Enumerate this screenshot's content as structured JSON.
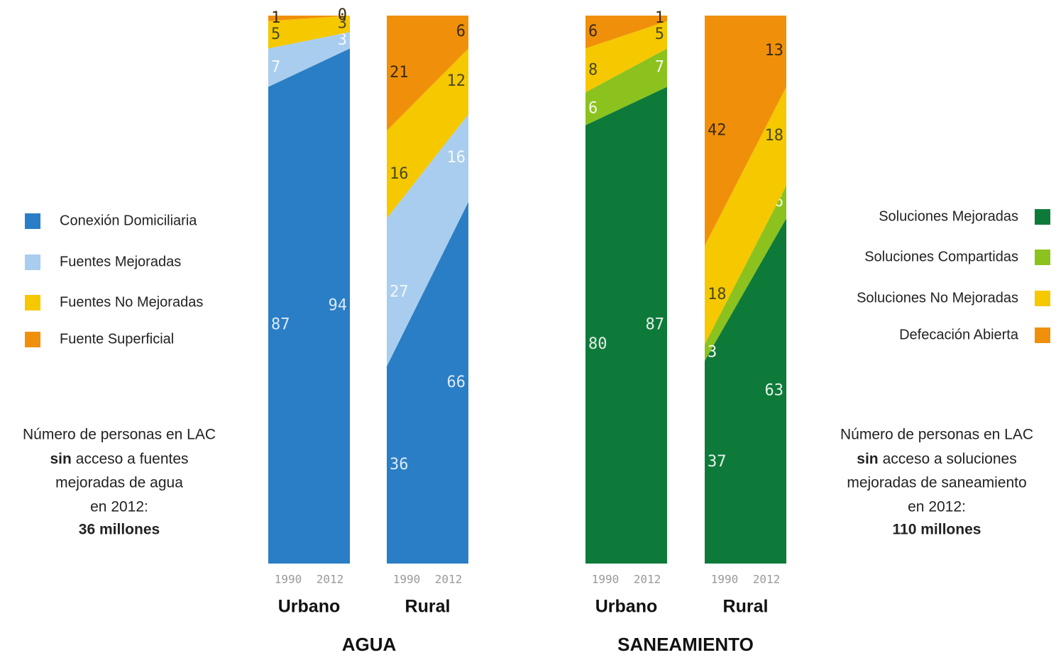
{
  "chart_data": [
    {
      "type": "slope_stack",
      "title": "AGUA",
      "categories": [
        "1990",
        "2012"
      ],
      "groups": [
        "Urbano",
        "Rural"
      ],
      "ylim": [
        0,
        100
      ],
      "legend": "left",
      "series": [
        {
          "name": "Conexión Domiciliaria",
          "color": "#2a7ec5",
          "label_color": "#dce9f5",
          "values": [
            [
              87,
              94
            ],
            [
              36,
              66
            ]
          ]
        },
        {
          "name": "Fuentes Mejoradas",
          "color": "#a9cdee",
          "label_color": "#f4f8fc",
          "values": [
            [
              7,
              3
            ],
            [
              27,
              16
            ]
          ]
        },
        {
          "name": "Fuentes No Mejoradas",
          "color": "#f5c800",
          "label_color": "#4a4a20",
          "values": [
            [
              5,
              3
            ],
            [
              16,
              12
            ]
          ]
        },
        {
          "name": "Fuente Superficial",
          "color": "#f0900a",
          "label_color": "#3a2a10",
          "values": [
            [
              1,
              0
            ],
            [
              21,
              6
            ]
          ]
        }
      ],
      "note": [
        "Número de personas en LAC",
        [
          "sin",
          "acceso a fuentes"
        ],
        "mejoradas de agua",
        "en 2012:"
      ],
      "note_total": "36 millones"
    },
    {
      "type": "slope_stack",
      "title": "SANEAMIENTO",
      "categories": [
        "1990",
        "2012"
      ],
      "groups": [
        "Urbano",
        "Rural"
      ],
      "ylim": [
        0,
        100
      ],
      "legend": "right",
      "series": [
        {
          "name": "Soluciones Mejoradas",
          "color": "#0e7a3a",
          "label_color": "#e6f2ea",
          "values": [
            [
              80,
              87
            ],
            [
              37,
              63
            ]
          ]
        },
        {
          "name": "Soluciones Compartidas",
          "color": "#8cc21e",
          "label_color": "#f4faec",
          "values": [
            [
              6,
              7
            ],
            [
              3,
              6
            ]
          ]
        },
        {
          "name": "Soluciones No Mejoradas",
          "color": "#f5c800",
          "label_color": "#4a4a20",
          "values": [
            [
              8,
              5
            ],
            [
              18,
              18
            ]
          ]
        },
        {
          "name": "Defecación Abierta",
          "color": "#f0900a",
          "label_color": "#3a2a10",
          "values": [
            [
              6,
              1
            ],
            [
              42,
              13
            ]
          ]
        }
      ],
      "note": [
        "Número de personas en LAC",
        [
          "sin",
          "acceso a soluciones"
        ],
        "mejoradas de saneamiento",
        "en 2012:"
      ],
      "note_total": "110 millones"
    }
  ]
}
